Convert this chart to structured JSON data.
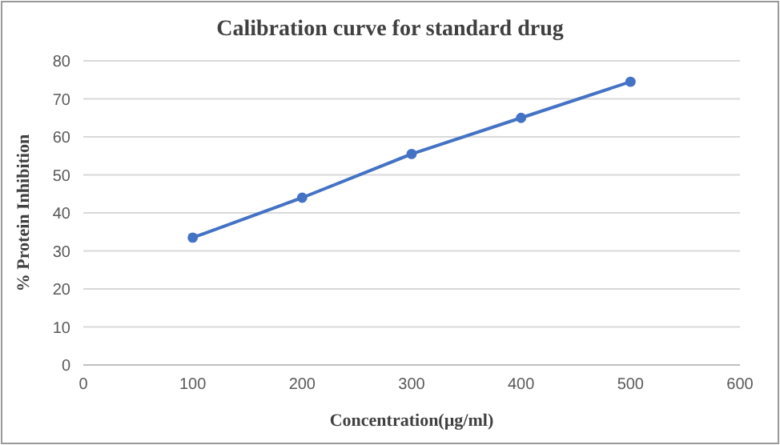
{
  "chart_data": {
    "type": "line",
    "title": "Calibration curve for standard drug",
    "xlabel": "Concentration(µg/ml)",
    "ylabel": "% Protein Inhibition",
    "x": [
      100,
      200,
      300,
      400,
      500
    ],
    "series": [
      {
        "color": "#4472c4",
        "values": [
          33.5,
          44,
          55.5,
          65,
          74.5
        ]
      }
    ],
    "xlim": [
      0,
      600
    ],
    "xticks": [
      0,
      100,
      200,
      300,
      400,
      500,
      600
    ],
    "ylim": [
      0,
      80
    ],
    "yticks": [
      0,
      10,
      20,
      30,
      40,
      50,
      60,
      70,
      80
    ],
    "grid": "y",
    "marker": "circle",
    "line_style": "solid"
  }
}
